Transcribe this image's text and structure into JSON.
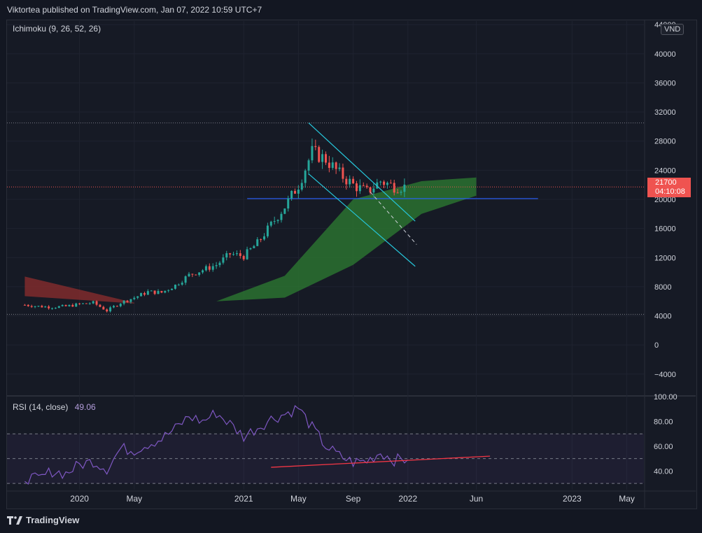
{
  "header": {
    "text": "Viktortea published on TradingView.com, Jan 07, 2022 10:59 UTC+7"
  },
  "branding": {
    "logo_text": "TradingView"
  },
  "main_pane": {
    "indicator_label": "Ichimoku (9, 26, 52, 26)",
    "currency": "VND",
    "last_price": "21700",
    "countdown": "04:10:08",
    "y_ticks": [
      "44000",
      "40000",
      "36000",
      "32000",
      "28000",
      "24000",
      "20000",
      "16000",
      "12000",
      "8000",
      "4000",
      "0",
      "−4000"
    ]
  },
  "rsi_pane": {
    "label": "RSI (14, close)",
    "value": "49.06",
    "y_ticks": [
      "100.00",
      "80.00",
      "60.00",
      "40.00"
    ]
  },
  "x_axis": {
    "ticks": [
      "2020",
      "May",
      "2021",
      "May",
      "Sep",
      "2022",
      "Jun",
      "2023",
      "May"
    ]
  },
  "colors": {
    "up": "#26a69a",
    "down": "#ef5350",
    "kumo_bull": "#2e7d32",
    "kumo_bear": "#8e2e2e",
    "rsi": "#7e57c2",
    "channel": "#26c6da",
    "support": "#2962ff",
    "trend": "#f23645"
  },
  "chart_data": [
    {
      "type": "candlestick",
      "title": "",
      "ylim": [
        -7000,
        44500
      ],
      "x_range": [
        "2019-09",
        "2023-06"
      ],
      "close_series": [
        {
          "t": "2019-09",
          "c": 5500
        },
        {
          "t": "2019-10",
          "c": 5300
        },
        {
          "t": "2019-11",
          "c": 5200
        },
        {
          "t": "2019-12",
          "c": 5300
        },
        {
          "t": "2020-01",
          "c": 5600
        },
        {
          "t": "2020-02",
          "c": 5800
        },
        {
          "t": "2020-03",
          "c": 4700
        },
        {
          "t": "2020-04",
          "c": 5800
        },
        {
          "t": "2020-05",
          "c": 6500
        },
        {
          "t": "2020-06",
          "c": 7300
        },
        {
          "t": "2020-07",
          "c": 7200
        },
        {
          "t": "2020-08",
          "c": 8200
        },
        {
          "t": "2020-09",
          "c": 9600
        },
        {
          "t": "2020-10",
          "c": 10300
        },
        {
          "t": "2020-11",
          "c": 11000
        },
        {
          "t": "2020-12",
          "c": 12500
        },
        {
          "t": "2021-01",
          "c": 12200
        },
        {
          "t": "2021-02",
          "c": 14000
        },
        {
          "t": "2021-03",
          "c": 16500
        },
        {
          "t": "2021-04",
          "c": 19000
        },
        {
          "t": "2021-05",
          "c": 22000
        },
        {
          "t": "2021-06",
          "c": 26500
        },
        {
          "t": "2021-07",
          "c": 25500
        },
        {
          "t": "2021-08",
          "c": 23500
        },
        {
          "t": "2021-09",
          "c": 22000
        },
        {
          "t": "2021-10",
          "c": 21000
        },
        {
          "t": "2021-11",
          "c": 22500
        },
        {
          "t": "2021-12",
          "c": 21800
        },
        {
          "t": "2022-01",
          "c": 21700
        }
      ],
      "last": 21700,
      "horizontal_lines": [
        30500,
        4200,
        20100
      ],
      "ichimoku_cloud": {
        "bearish": [
          {
            "t": "2019-09",
            "top": 9400,
            "bottom": 6700
          },
          {
            "t": "2020-05",
            "top": 5800,
            "bottom": 5700
          }
        ],
        "bullish": [
          {
            "t": "2020-11",
            "top": 6000,
            "bottom": 6000
          },
          {
            "t": "2021-04",
            "top": 9500,
            "bottom": 6500
          },
          {
            "t": "2021-09",
            "top": 20000,
            "bottom": 11000
          },
          {
            "t": "2022-02",
            "top": 22500,
            "bottom": 18000
          },
          {
            "t": "2022-06",
            "top": 23000,
            "bottom": 20500
          }
        ]
      }
    },
    {
      "type": "line",
      "title": "",
      "ylim": [
        25,
        100
      ],
      "series": [
        {
          "name": "",
          "points": [
            {
              "t": "2019-09",
              "v": 35
            },
            {
              "t": "2019-10",
              "v": 33
            },
            {
              "t": "2019-11",
              "v": 40
            },
            {
              "t": "2019-12",
              "v": 38
            },
            {
              "t": "2020-01",
              "v": 45
            },
            {
              "t": "2020-02",
              "v": 48
            },
            {
              "t": "2020-03",
              "v": 42
            },
            {
              "t": "2020-04",
              "v": 58
            },
            {
              "t": "2020-05",
              "v": 57
            },
            {
              "t": "2020-06",
              "v": 62
            },
            {
              "t": "2020-07",
              "v": 66
            },
            {
              "t": "2020-08",
              "v": 74
            },
            {
              "t": "2020-09",
              "v": 84
            },
            {
              "t": "2020-10",
              "v": 80
            },
            {
              "t": "2020-11",
              "v": 87
            },
            {
              "t": "2020-12",
              "v": 78
            },
            {
              "t": "2021-01",
              "v": 68
            },
            {
              "t": "2021-02",
              "v": 75
            },
            {
              "t": "2021-03",
              "v": 82
            },
            {
              "t": "2021-04",
              "v": 86
            },
            {
              "t": "2021-05",
              "v": 91
            },
            {
              "t": "2021-06",
              "v": 75
            },
            {
              "t": "2021-07",
              "v": 60
            },
            {
              "t": "2021-08",
              "v": 52
            },
            {
              "t": "2021-09",
              "v": 47
            },
            {
              "t": "2021-10",
              "v": 48
            },
            {
              "t": "2021-11",
              "v": 55
            },
            {
              "t": "2021-12",
              "v": 49
            },
            {
              "t": "2022-01",
              "v": 49.06
            }
          ]
        }
      ],
      "reference_lines": [
        70,
        50,
        30
      ],
      "trendline": [
        {
          "t": "2021-03",
          "v": 43
        },
        {
          "t": "2022-07",
          "v": 52
        }
      ]
    }
  ]
}
